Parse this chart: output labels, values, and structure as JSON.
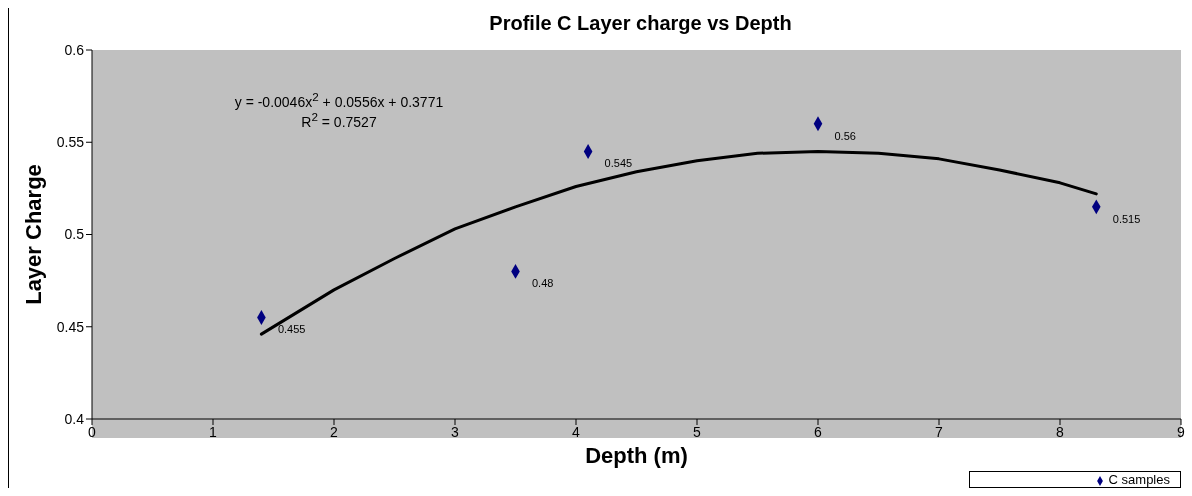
{
  "chart_data": {
    "type": "scatter",
    "title": "Profile C Layer charge vs Depth",
    "xlabel": "Depth (m)",
    "ylabel": "Layer Charge",
    "xlim": [
      0,
      9
    ],
    "xticks": [
      0,
      1,
      2,
      3,
      4,
      5,
      6,
      7,
      8,
      9
    ],
    "ylim": [
      0.4,
      0.6
    ],
    "yticks": [
      0.4,
      0.45,
      0.5,
      0.55,
      0.6
    ],
    "grid": false,
    "legend": "bottom right",
    "annotations": [
      "y = -0.0046x$^{2}$ + 0.0556x + 0.3771",
      "R$^{2}$ = 0.7527"
    ],
    "series": [
      {
        "name": "C samples",
        "type": "scatter",
        "marker": "diamond",
        "color": "#000080",
        "x": [
          1.4,
          3.5,
          4.1,
          6,
          8.3
        ],
        "values": [
          0.455,
          0.48,
          0.545,
          0.56,
          0.515
        ],
        "value_labels": [
          "0.455",
          "0.48",
          "0.545",
          "0.56",
          "0.515"
        ]
      },
      {
        "type": "line",
        "marker": "none",
        "color": "#000000",
        "x": [
          1.4,
          2,
          2.5,
          3,
          3.5,
          4,
          4.5,
          5,
          5.5,
          6,
          6.5,
          7,
          7.5,
          8,
          8.3
        ],
        "values": [
          0.446,
          0.47,
          0.487,
          0.503,
          0.515,
          0.526,
          0.534,
          0.54,
          0.544,
          0.545,
          0.544,
          0.541,
          0.535,
          0.528,
          0.522
        ]
      }
    ]
  }
}
